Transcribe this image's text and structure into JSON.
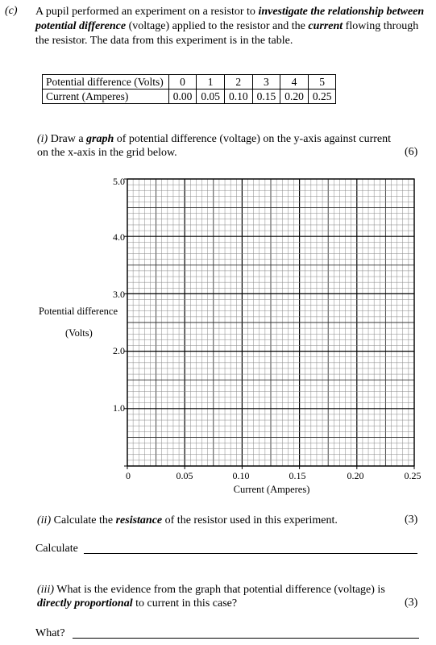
{
  "question": {
    "label": "(c)",
    "intro_1": "A pupil performed an experiment on a resistor to ",
    "intro_2": "investigate the relationship between potential difference",
    "intro_3": " (voltage) applied to the resistor and the ",
    "intro_4": "current",
    "intro_5": " flowing through the resistor. The data from this experiment is in the table."
  },
  "table": {
    "row1_header": "Potential difference (Volts)",
    "row1_values": [
      "0",
      "1",
      "2",
      "3",
      "4",
      "5"
    ],
    "row2_header": "Current (Amperes)",
    "row2_values": [
      "0.00",
      "0.05",
      "0.10",
      "0.15",
      "0.20",
      "0.25"
    ]
  },
  "part_i": {
    "label": "(i)",
    "text_1": " Draw a ",
    "text_2": "graph",
    "text_3": " of potential difference (voltage) on the y-axis against current on the x-axis in the grid below.",
    "marks": "(6)"
  },
  "chart_data": {
    "type": "line",
    "title": "",
    "ylabel_line1": "Potential difference",
    "ylabel_line2": "(Volts)",
    "xlabel": "Current (Amperes)",
    "y_ticks": [
      "1.0",
      "2.0",
      "3.0",
      "4.0",
      "5.0"
    ],
    "x_ticks": [
      "0",
      "0.05",
      "0.10",
      "0.15",
      "0.20",
      "0.25"
    ],
    "xlim": [
      0,
      0.25
    ],
    "ylim": [
      0,
      5.0
    ],
    "grid": true,
    "series": []
  },
  "part_ii": {
    "label": "(ii)",
    "text_1": " Calculate the ",
    "text_2": "resistance",
    "text_3": " of the resistor used in this experiment.",
    "marks": "(3)",
    "answer_prompt": "Calculate"
  },
  "part_iii": {
    "label": "(iii)",
    "text_1": " What is the evidence from the graph that potential difference (voltage) is ",
    "text_2": "directly proportional",
    "text_3": " to current in this case?",
    "marks": "(3)",
    "answer_prompt": "What?"
  }
}
